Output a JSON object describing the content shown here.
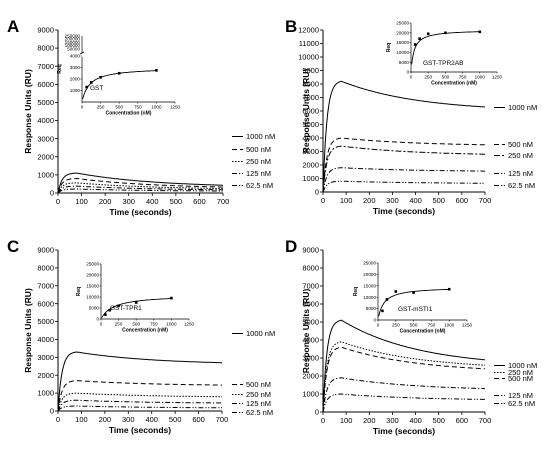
{
  "chart_data": [
    {
      "panel_label": "A",
      "type": "line",
      "xlabel": "Time (seconds)",
      "ylabel": "Response Units (RU)",
      "xlim": [
        0,
        700
      ],
      "ylim": [
        0,
        9000
      ],
      "xticks": [
        0,
        100,
        200,
        300,
        400,
        500,
        600,
        700
      ],
      "yticks": [
        0,
        1000,
        2000,
        3000,
        4000,
        5000,
        6000,
        7000,
        8000,
        9000
      ],
      "legend_position": "right",
      "series": [
        {
          "name": "1000 nM",
          "style": "solid",
          "peak": 1100,
          "end": 430
        },
        {
          "name": "500 nM",
          "style": "dash",
          "peak": 800,
          "end": 330
        },
        {
          "name": "250 nM",
          "style": "dot",
          "peak": 560,
          "end": 250
        },
        {
          "name": "125 nM",
          "style": "dashdot",
          "peak": 380,
          "end": 180
        },
        {
          "name": "62.5 nM",
          "style": "dashdotdot",
          "peak": 220,
          "end": 110
        }
      ],
      "inset": {
        "name": "GST",
        "type": "scatter",
        "xlabel": "Concentration (nM)",
        "ylabel": "Req",
        "xlim": [
          0,
          1250
        ],
        "ylim": [
          0,
          250000
        ],
        "xticks": [
          0,
          250,
          500,
          750,
          1000,
          1250
        ],
        "yticks": [
          1000,
          2000,
          3000,
          4000
        ],
        "y_axis_break": true,
        "points": [
          {
            "x": 62.5,
            "y": 1300
          },
          {
            "x": 125,
            "y": 1700
          },
          {
            "x": 250,
            "y": 2150
          },
          {
            "x": 500,
            "y": 2500
          },
          {
            "x": 1000,
            "y": 2750
          }
        ],
        "fit": {
          "bmax": 3000,
          "kd": 100
        }
      }
    },
    {
      "panel_label": "B",
      "type": "line",
      "xlabel": "Time (seconds)",
      "ylabel": "Response Units (RU)",
      "xlim": [
        0,
        700
      ],
      "ylim": [
        0,
        12000
      ],
      "xticks": [
        0,
        100,
        200,
        300,
        400,
        500,
        600,
        700
      ],
      "yticks": [
        0,
        1000,
        2000,
        3000,
        4000,
        5000,
        6000,
        7000,
        8000,
        9000,
        10000,
        11000,
        12000
      ],
      "legend_position": "right",
      "series": [
        {
          "name": "1000 nM",
          "style": "solid",
          "peak": 8200,
          "end": 6300
        },
        {
          "name": "500 nM",
          "style": "dash",
          "peak": 4000,
          "end": 3500
        },
        {
          "name": "250 nM",
          "style": "dashdot2",
          "peak": 3400,
          "end": 2800
        },
        {
          "name": "125 nM",
          "style": "dashdot",
          "peak": 1800,
          "end": 1550
        },
        {
          "name": "62.5 nM",
          "style": "dashdotdot",
          "peak": 800,
          "end": 650
        }
      ],
      "inset": {
        "name": "GST-TPR2AB",
        "type": "scatter",
        "xlabel": "Concentration (nM)",
        "ylabel": "Req",
        "xlim": [
          0,
          1250
        ],
        "ylim": [
          0,
          25000
        ],
        "xticks": [
          0,
          250,
          500,
          750,
          1000,
          1250
        ],
        "yticks": [
          0,
          5000,
          10000,
          15000,
          20000,
          25000
        ],
        "y_axis_break": false,
        "points": [
          {
            "x": 62.5,
            "y": 14000
          },
          {
            "x": 125,
            "y": 17000
          },
          {
            "x": 250,
            "y": 19500
          },
          {
            "x": 500,
            "y": 20000
          },
          {
            "x": 1000,
            "y": 20500
          }
        ],
        "fit": {
          "bmax": 21500,
          "kd": 45
        }
      }
    },
    {
      "panel_label": "C",
      "type": "line",
      "xlabel": "Time (seconds)",
      "ylabel": "Response Units (RU)",
      "xlim": [
        0,
        700
      ],
      "ylim": [
        0,
        9000
      ],
      "xticks": [
        0,
        100,
        200,
        300,
        400,
        500,
        600,
        700
      ],
      "yticks": [
        0,
        1000,
        2000,
        3000,
        4000,
        5000,
        6000,
        7000,
        8000,
        9000
      ],
      "legend_position": "right",
      "series": [
        {
          "name": "1000 nM",
          "style": "solid",
          "peak": 3300,
          "end": 2700
        },
        {
          "name": "500 nM",
          "style": "dash",
          "peak": 1700,
          "end": 1450
        },
        {
          "name": "250 nM",
          "style": "dot",
          "peak": 1000,
          "end": 800
        },
        {
          "name": "125 nM",
          "style": "dashdot",
          "peak": 600,
          "end": 450
        },
        {
          "name": "62.5 nM",
          "style": "dashdotdot",
          "peak": 280,
          "end": 180
        }
      ],
      "inset": {
        "name": "GST-TPR1",
        "type": "scatter",
        "xlabel": "Concentration (nM)",
        "ylabel": "Req",
        "xlim": [
          0,
          1250
        ],
        "ylim": [
          0,
          25000
        ],
        "xticks": [
          0,
          250,
          500,
          750,
          1000,
          1250
        ],
        "yticks": [
          0,
          5000,
          10000,
          15000,
          20000,
          25000
        ],
        "y_axis_break": false,
        "points": [
          {
            "x": 62.5,
            "y": 2000
          },
          {
            "x": 125,
            "y": 4000
          },
          {
            "x": 250,
            "y": 6000
          },
          {
            "x": 500,
            "y": 7500
          },
          {
            "x": 1000,
            "y": 9500
          }
        ],
        "fit": {
          "bmax": 11000,
          "kd": 180
        }
      }
    },
    {
      "panel_label": "D",
      "type": "line",
      "xlabel": "Time (seconds)",
      "ylabel": "Response Units (RU)",
      "xlim": [
        0,
        700
      ],
      "ylim": [
        0,
        9000
      ],
      "xticks": [
        0,
        100,
        200,
        300,
        400,
        500,
        600,
        700
      ],
      "yticks": [
        0,
        1000,
        2000,
        3000,
        4000,
        5000,
        6000,
        7000,
        8000,
        9000
      ],
      "legend_position": "right",
      "series": [
        {
          "name": "1000 nM",
          "style": "solid",
          "peak": 5100,
          "end": 2900
        },
        {
          "name": "250 nM",
          "style": "dot",
          "peak": 3900,
          "end": 2600
        },
        {
          "name": "500 nM",
          "style": "dash",
          "peak": 3600,
          "end": 2400
        },
        {
          "name": "125 nM",
          "style": "dashdot",
          "peak": 1900,
          "end": 1300
        },
        {
          "name": "62.5 nM",
          "style": "dashdotdot",
          "peak": 1000,
          "end": 700
        }
      ],
      "inset": {
        "name": "GST-mSTI1",
        "type": "scatter",
        "xlabel": "Concentration (nM)",
        "ylabel": "Req",
        "xlim": [
          0,
          1250
        ],
        "ylim": [
          0,
          25000
        ],
        "xticks": [
          0,
          250,
          500,
          750,
          1000,
          1250
        ],
        "yticks": [
          0,
          5000,
          10000,
          15000,
          20000,
          25000
        ],
        "y_axis_break": false,
        "points": [
          {
            "x": 62.5,
            "y": 4000
          },
          {
            "x": 125,
            "y": 9000
          },
          {
            "x": 250,
            "y": 12500
          },
          {
            "x": 500,
            "y": 12000
          },
          {
            "x": 1000,
            "y": 13500
          }
        ],
        "fit": {
          "bmax": 14500,
          "kd": 80
        }
      }
    }
  ]
}
